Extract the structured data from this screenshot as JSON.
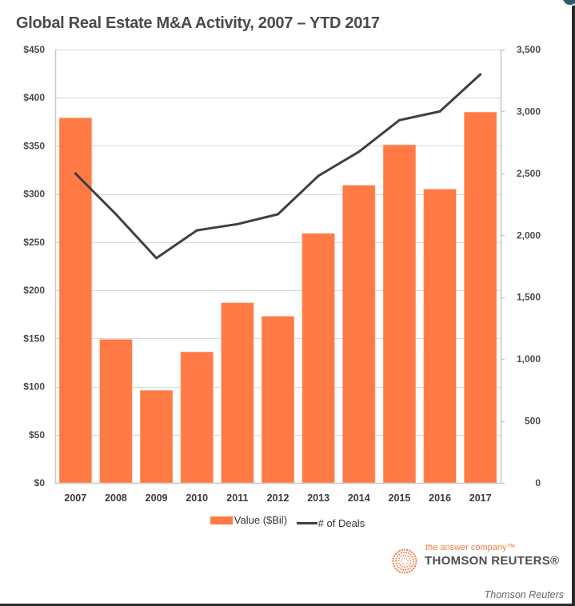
{
  "colors": {
    "bar": "#ff7a45",
    "line": "#404040",
    "grid": "#d9d9d9",
    "axis": "#c8c8c8",
    "brand_orange": "#f47b40"
  },
  "chart_data": {
    "type": "bar",
    "title": "Global Real Estate M&A Activity, 2007 – YTD 2017",
    "categories": [
      "2007",
      "2008",
      "2009",
      "2010",
      "2011",
      "2012",
      "2013",
      "2014",
      "2015",
      "2016",
      "2017"
    ],
    "series": [
      {
        "name": "Value ($Bil)",
        "type": "bar",
        "axis": "left",
        "values": [
          379,
          149,
          96,
          136,
          187,
          173,
          259,
          309,
          351,
          305,
          385
        ]
      },
      {
        "name": "# of Deals",
        "type": "line",
        "axis": "right",
        "values": [
          2500,
          2170,
          1815,
          2040,
          2090,
          2170,
          2480,
          2675,
          2930,
          3000,
          3300
        ]
      }
    ],
    "xlabel": "",
    "ylabel": "",
    "ylim": [
      0,
      450
    ],
    "y2lim": [
      0,
      3500
    ],
    "left_ticks": [
      "$0",
      "$50",
      "$100",
      "$150",
      "$200",
      "$250",
      "$300",
      "$350",
      "$400",
      "$450"
    ],
    "left_tick_values": [
      0,
      50,
      100,
      150,
      200,
      250,
      300,
      350,
      400,
      450
    ],
    "right_ticks": [
      "0",
      "500",
      "1,000",
      "1,500",
      "2,000",
      "2,500",
      "3,000",
      "3,500"
    ],
    "right_tick_values": [
      0,
      500,
      1000,
      1500,
      2000,
      2500,
      3000,
      3500
    ],
    "grid": true,
    "legend_position": "bottom-center"
  },
  "legend": {
    "bar_label": "Value ($Bil)",
    "line_label": "# of Deals"
  },
  "logo": {
    "tagline": "the answer company™",
    "name": "THOMSON REUTERS®"
  },
  "caption": "Thomson Reuters"
}
